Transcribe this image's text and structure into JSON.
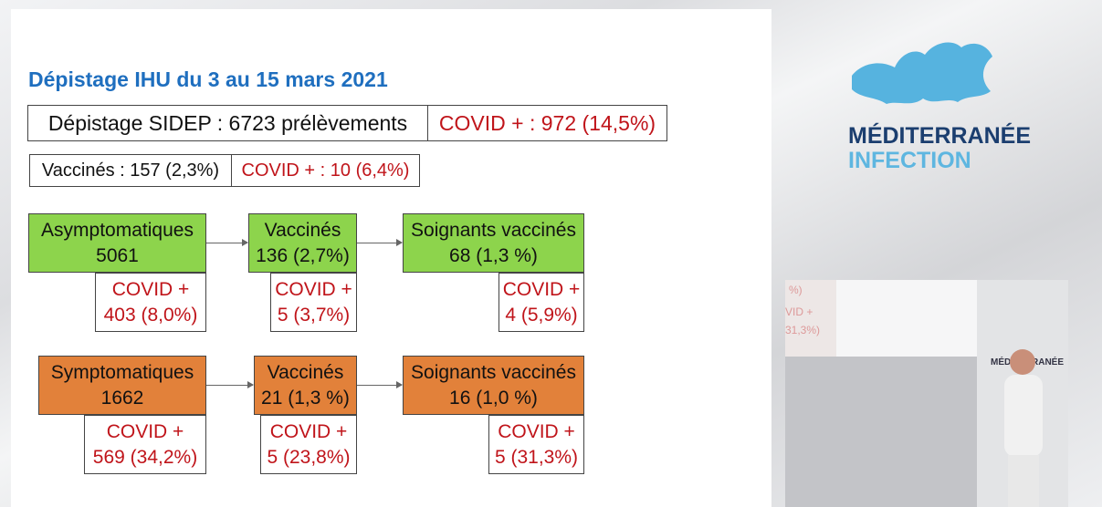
{
  "slide": {
    "title": "Dépistage IHU du 3 au 15 mars 2021",
    "sidep": {
      "label": "Dépistage SIDEP : 6723 prélèvements",
      "covid": "COVID + : 972 (14,5%)"
    },
    "vaccines": {
      "label": "Vaccinés : 157 (2,3%)",
      "covid": "COVID + : 10 (6,4%)"
    },
    "asymptomatic": {
      "group": {
        "line1": "Asymptomatiques",
        "line2": "5061",
        "covid1": "COVID +",
        "covid2": "403 (8,0%)"
      },
      "vaccinated": {
        "line1": "Vaccinés",
        "line2": "136 (2,7%)",
        "covid1": "COVID +",
        "covid2": "5 (3,7%)"
      },
      "caregivers": {
        "line1": "Soignants vaccinés",
        "line2": "68 (1,3 %)",
        "covid1": "COVID +",
        "covid2": "4 (5,9%)"
      }
    },
    "symptomatic": {
      "group": {
        "line1": "Symptomatiques",
        "line2": "1662",
        "covid1": "COVID +",
        "covid2": "569 (34,2%)"
      },
      "vaccinated": {
        "line1": "Vaccinés",
        "line2": "21 (1,3 %)",
        "covid1": "COVID +",
        "covid2": "5 (23,8%)"
      },
      "caregivers": {
        "line1": "Soignants vaccinés",
        "line2": "16 (1,0 %)",
        "covid1": "COVID +",
        "covid2": "5 (31,3%)"
      }
    }
  },
  "logo": {
    "line1": "MÉDITERRANÉE",
    "line2": "INFECTION"
  },
  "colors": {
    "title": "#1f6fbf",
    "covid": "#c0141a",
    "green": "#8dd44c",
    "orange": "#e2813a"
  },
  "video": {
    "frag1": "%)",
    "frag2": "VID +",
    "frag3": "31,3%)",
    "logo": "MÉDITERRANÉE"
  }
}
